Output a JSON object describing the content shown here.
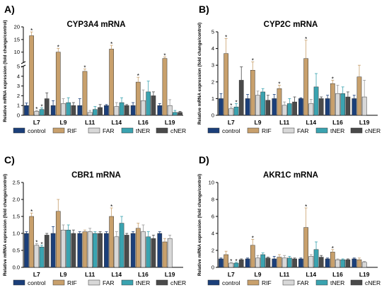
{
  "chart_data": [
    {
      "panel": "A)",
      "title": "CYP3A4 mRNA",
      "type": "bar",
      "ylabel": "Relative mRNA expression (fold change/control)",
      "broken_axis": true,
      "y_ticks_lower": [
        0,
        1,
        2,
        3,
        4,
        5
      ],
      "y_ticks_upper": [
        10,
        15,
        20
      ],
      "ylim": [
        0,
        20
      ],
      "categories": [
        "L7",
        "L9",
        "L11",
        "L14",
        "L16",
        "L19"
      ],
      "series": [
        {
          "name": "control",
          "color": "#1b3f7a",
          "values": [
            1.0,
            1.0,
            1.0,
            1.0,
            1.0,
            1.0
          ],
          "errors": [
            0.25,
            0.5,
            0.7,
            0.1,
            0.3,
            0.2
          ]
        },
        {
          "name": "RIF",
          "color": "#c8a06c",
          "values": [
            16.5,
            10.0,
            4.5,
            11.2,
            3.4,
            7.5
          ],
          "errors": [
            1.5,
            1.5,
            0.25,
            1.5,
            0.5,
            0.6
          ],
          "sig": [
            true,
            true,
            true,
            true,
            true,
            true
          ]
        },
        {
          "name": "FAR",
          "color": "#d8d8d8",
          "values": [
            0.4,
            1.2,
            0.3,
            0.9,
            1.5,
            1.0
          ],
          "errors": [
            0.1,
            0.5,
            0.2,
            0.4,
            1.1,
            0.6
          ],
          "sig": [
            true,
            false,
            false,
            false,
            false,
            false
          ]
        },
        {
          "name": "tNER",
          "color": "#3aa3b0",
          "values": [
            0.6,
            1.3,
            0.6,
            1.3,
            2.4,
            0.3
          ],
          "errors": [
            0.15,
            0.5,
            0.3,
            0.5,
            1.1,
            0.2
          ],
          "sig": [
            true,
            false,
            false,
            false,
            false,
            false
          ]
        },
        {
          "name": "cNER",
          "color": "#4a4a4a",
          "values": [
            1.7,
            1.0,
            0.8,
            1.0,
            2.0,
            0.3
          ],
          "errors": [
            0.6,
            0.3,
            0.3,
            0.1,
            0.4,
            0.1
          ]
        }
      ]
    },
    {
      "panel": "B)",
      "title": "CYP2C mRNA",
      "type": "bar",
      "ylabel": "Relative mRNA expression (fold change/control)",
      "y_ticks": [
        0,
        1,
        2,
        3,
        4,
        5
      ],
      "ylim": [
        0,
        5
      ],
      "categories": [
        "L7",
        "L9",
        "L11",
        "L14",
        "L16",
        "L19"
      ],
      "series": [
        {
          "name": "control",
          "color": "#1b3f7a",
          "values": [
            1.0,
            1.0,
            1.0,
            1.0,
            1.0,
            1.0
          ],
          "errors": [
            0.3,
            0.25,
            0.25,
            0.05,
            0.2,
            0.2
          ]
        },
        {
          "name": "RIF",
          "color": "#c8a06c",
          "values": [
            3.7,
            2.7,
            1.6,
            3.4,
            1.9,
            2.3
          ],
          "errors": [
            0.9,
            0.5,
            0.2,
            1.1,
            0.2,
            0.7
          ],
          "sig": [
            true,
            true,
            true,
            true,
            true,
            false
          ]
        },
        {
          "name": "FAR",
          "color": "#d8d8d8",
          "values": [
            0.4,
            1.2,
            0.6,
            0.7,
            1.3,
            1.1
          ],
          "errors": [
            0.1,
            0.25,
            0.2,
            0.25,
            0.5,
            1.0
          ],
          "sig": [
            true,
            false,
            false,
            false,
            false,
            false
          ]
        },
        {
          "name": "tNER",
          "color": "#3aa3b0",
          "values": [
            0.5,
            1.4,
            0.7,
            1.7,
            1.3,
            0.0
          ],
          "errors": [
            0.2,
            0.2,
            0.3,
            0.8,
            0.4,
            0.0
          ],
          "sig": [
            true,
            false,
            false,
            false,
            false,
            false
          ]
        },
        {
          "name": "cNER",
          "color": "#4a4a4a",
          "values": [
            2.1,
            0.9,
            0.8,
            1.0,
            1.1,
            0.0
          ],
          "errors": [
            0.8,
            0.3,
            0.3,
            0.1,
            0.3,
            0.0
          ]
        }
      ]
    },
    {
      "panel": "C)",
      "title": "CBR1 mRNA",
      "type": "bar",
      "ylabel": "Relative mRNA expression (fold change/control)",
      "y_ticks": [
        0.0,
        0.5,
        1.0,
        1.5,
        2.0,
        2.5
      ],
      "ylim": [
        0,
        2.5
      ],
      "categories": [
        "L7",
        "L9",
        "L11",
        "L14",
        "L16",
        "L19"
      ],
      "series": [
        {
          "name": "control",
          "color": "#1b3f7a",
          "values": [
            1.0,
            1.0,
            1.0,
            1.0,
            1.0,
            1.0
          ],
          "errors": [
            0.05,
            0.2,
            0.05,
            0.05,
            0.05,
            0.05
          ]
        },
        {
          "name": "RIF",
          "color": "#c8a06c",
          "values": [
            1.5,
            1.65,
            1.05,
            1.5,
            1.15,
            0.75
          ],
          "errors": [
            0.1,
            0.35,
            0.05,
            0.25,
            0.15,
            0.1
          ],
          "sig": [
            true,
            false,
            false,
            true,
            false,
            false
          ]
        },
        {
          "name": "FAR",
          "color": "#d8d8d8",
          "values": [
            0.65,
            1.1,
            1.05,
            0.9,
            1.05,
            0.85
          ],
          "errors": [
            0.05,
            0.15,
            0.1,
            0.15,
            0.2,
            0.1
          ],
          "sig": [
            true,
            false,
            false,
            false,
            false,
            false
          ]
        },
        {
          "name": "tNER",
          "color": "#3aa3b0",
          "values": [
            0.6,
            1.1,
            1.0,
            1.3,
            0.9,
            0.0
          ],
          "errors": [
            0.05,
            0.15,
            0.05,
            0.2,
            0.15,
            0.0
          ],
          "sig": [
            true,
            false,
            false,
            false,
            false,
            false
          ]
        },
        {
          "name": "cNER",
          "color": "#4a4a4a",
          "values": [
            0.95,
            1.0,
            1.0,
            0.95,
            0.85,
            0.0
          ],
          "errors": [
            0.05,
            0.1,
            0.05,
            0.05,
            0.1,
            0.0
          ]
        }
      ]
    },
    {
      "panel": "D)",
      "title": "AKR1C mRNA",
      "type": "bar",
      "ylabel": "Relative mRNA expression (fold change/control)",
      "y_ticks": [
        0,
        2,
        4,
        6,
        8,
        10
      ],
      "ylim": [
        0,
        10
      ],
      "categories": [
        "L7",
        "L9",
        "L11",
        "L14",
        "L16",
        "L19"
      ],
      "series": [
        {
          "name": "control",
          "color": "#1b3f7a",
          "values": [
            1.0,
            1.0,
            1.0,
            1.0,
            1.0,
            1.0
          ],
          "errors": [
            0.1,
            0.1,
            0.3,
            0.1,
            0.1,
            0.1
          ]
        },
        {
          "name": "RIF",
          "color": "#c8a06c",
          "values": [
            1.5,
            2.6,
            1.2,
            4.7,
            1.8,
            0.9
          ],
          "errors": [
            0.4,
            0.7,
            0.3,
            2.3,
            0.3,
            0.2
          ],
          "sig": [
            false,
            true,
            false,
            true,
            true,
            false
          ]
        },
        {
          "name": "FAR",
          "color": "#d8d8d8",
          "values": [
            0.5,
            1.1,
            1.1,
            1.3,
            0.9,
            0.6
          ],
          "errors": [
            0.1,
            0.3,
            0.3,
            0.2,
            0.1,
            0.1
          ],
          "sig": [
            true,
            false,
            false,
            false,
            false,
            false
          ]
        },
        {
          "name": "tNER",
          "color": "#3aa3b0",
          "values": [
            0.5,
            1.5,
            1.1,
            2.1,
            0.9,
            0.0
          ],
          "errors": [
            0.1,
            0.2,
            0.2,
            0.9,
            0.1,
            0.0
          ],
          "sig": [
            true,
            false,
            false,
            false,
            false,
            false
          ]
        },
        {
          "name": "cNER",
          "color": "#4a4a4a",
          "values": [
            0.9,
            1.1,
            1.0,
            1.2,
            0.9,
            0.0
          ],
          "errors": [
            0.1,
            0.1,
            0.1,
            0.2,
            0.1,
            0.0
          ]
        }
      ]
    }
  ]
}
